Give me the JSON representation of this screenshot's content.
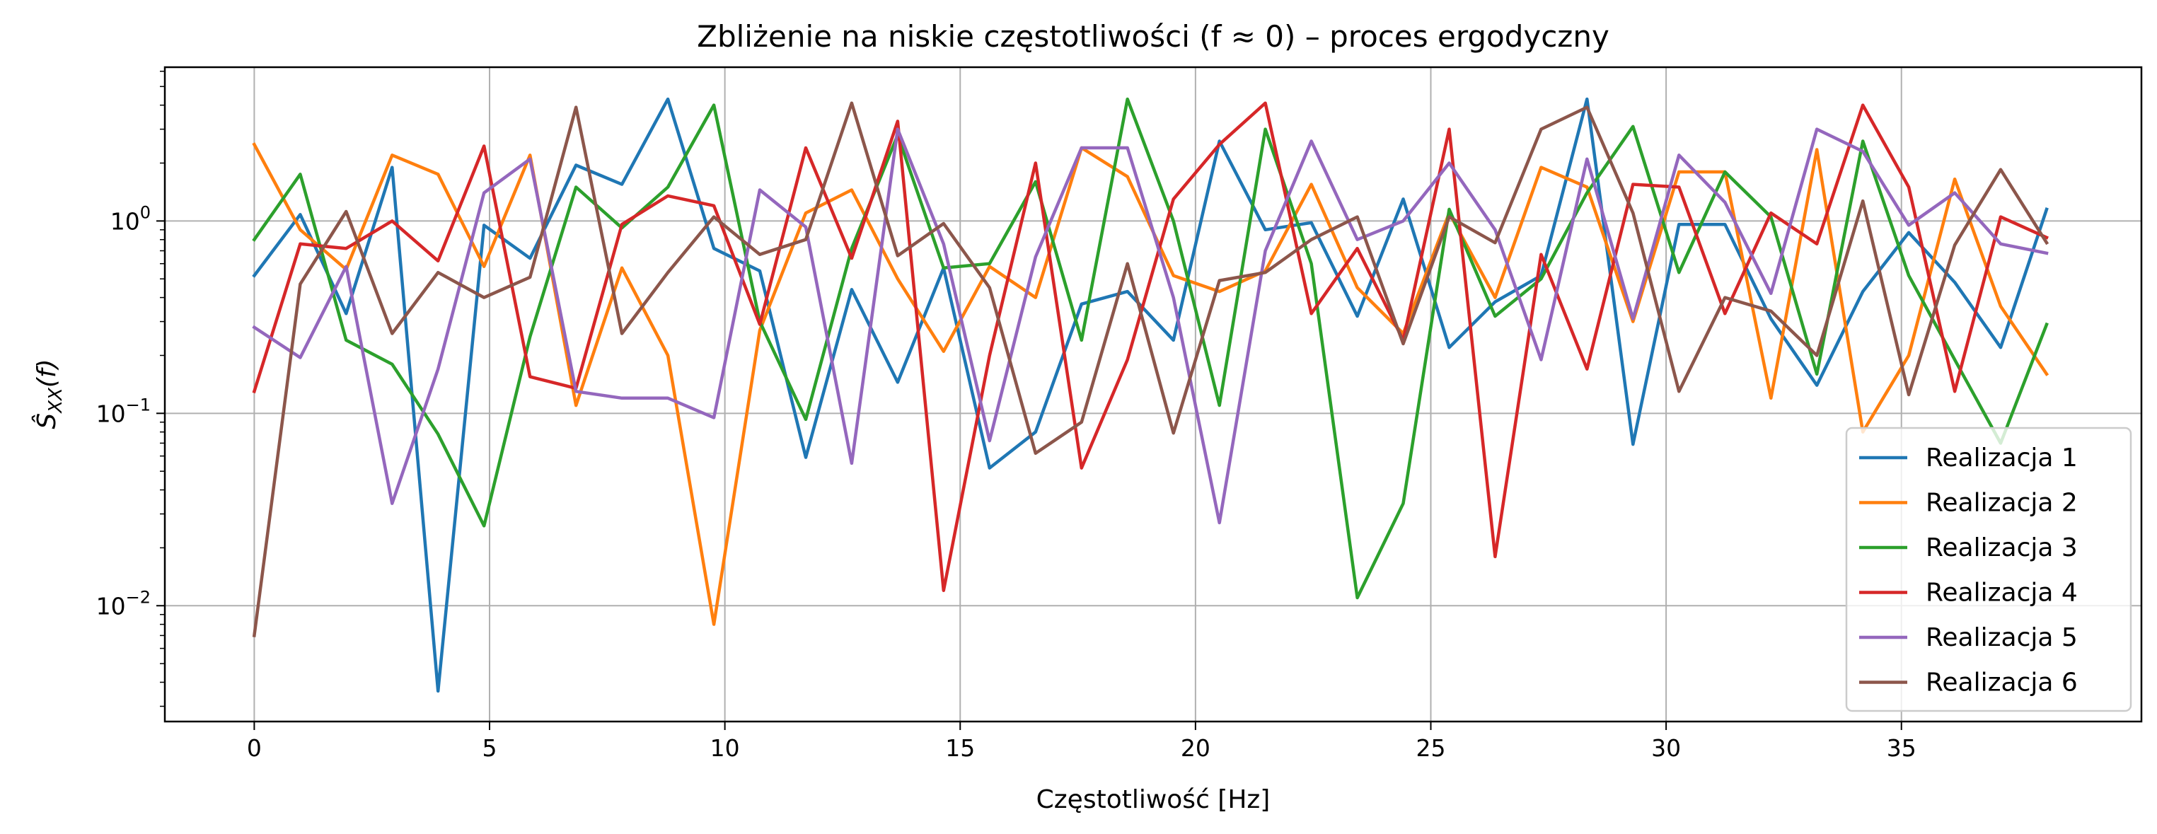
{
  "chart_data": {
    "type": "line",
    "title": "Zbliżenie na niskie częstotliwości (f ≈ 0) – proces ergodyczny",
    "xlabel": "Częstotliwość [Hz]",
    "ylabel": "Ŝ_XX(f)",
    "yscale": "log",
    "xlim": [
      -1.9,
      40.1
    ],
    "ylim": [
      0.0025,
      6.3
    ],
    "xticks": [
      0,
      5,
      10,
      15,
      20,
      25,
      30,
      35
    ],
    "xtick_labels": [
      "0",
      "5",
      "10",
      "15",
      "20",
      "25",
      "30",
      "35"
    ],
    "yticks": [
      0.01,
      0.1,
      1
    ],
    "ytick_labels": [
      {
        "base": "10",
        "exp": "−2"
      },
      {
        "base": "10",
        "exp": "−1"
      },
      {
        "base": "10",
        "exp": "0"
      }
    ],
    "grid": true,
    "legend_position": "lower right",
    "x": [
      0,
      0.977,
      1.953,
      2.93,
      3.906,
      4.883,
      5.859,
      6.836,
      7.813,
      8.789,
      9.766,
      10.742,
      11.719,
      12.695,
      13.672,
      14.648,
      15.625,
      16.602,
      17.578,
      18.555,
      19.531,
      20.508,
      21.484,
      22.461,
      23.438,
      24.414,
      25.391,
      26.367,
      27.344,
      28.32,
      29.297,
      30.273,
      31.25,
      32.227,
      33.203,
      34.18,
      35.156,
      36.133,
      37.109,
      38.086
    ],
    "series": [
      {
        "name": "Realizacja 1",
        "color": "#1f77b4",
        "values": [
          0.52,
          1.08,
          0.33,
          1.9,
          0.0036,
          0.95,
          0.64,
          1.95,
          1.55,
          4.3,
          0.72,
          0.55,
          0.059,
          0.44,
          0.145,
          0.57,
          0.052,
          0.08,
          0.37,
          0.43,
          0.24,
          2.6,
          0.9,
          0.98,
          0.32,
          1.3,
          0.22,
          0.38,
          0.52,
          4.3,
          0.069,
          0.96,
          0.96,
          0.31,
          0.14,
          0.43,
          0.87,
          0.48,
          0.22,
          1.15
        ]
      },
      {
        "name": "Realizacja 2",
        "color": "#ff7f0e",
        "values": [
          2.5,
          0.9,
          0.56,
          2.2,
          1.75,
          0.58,
          2.2,
          0.11,
          0.57,
          0.2,
          0.008,
          0.27,
          1.1,
          1.45,
          0.5,
          0.21,
          0.58,
          0.4,
          2.4,
          1.7,
          0.52,
          0.43,
          0.55,
          1.55,
          0.45,
          0.26,
          1.1,
          0.4,
          1.9,
          1.5,
          0.3,
          1.8,
          1.8,
          0.12,
          2.35,
          0.08,
          0.2,
          1.65,
          0.36,
          0.16
        ]
      },
      {
        "name": "Realizacja 3",
        "color": "#2ca02c",
        "values": [
          0.8,
          1.75,
          0.24,
          0.18,
          0.078,
          0.026,
          0.25,
          1.5,
          0.92,
          1.5,
          4.0,
          0.3,
          0.093,
          0.72,
          2.8,
          0.57,
          0.6,
          1.6,
          0.24,
          4.3,
          1.0,
          0.11,
          3.0,
          0.6,
          0.011,
          0.034,
          1.15,
          0.32,
          0.5,
          1.4,
          3.1,
          0.54,
          1.8,
          1.05,
          0.16,
          2.6,
          0.52,
          0.19,
          0.07,
          0.29
        ]
      },
      {
        "name": "Realizacja 4",
        "color": "#d62728",
        "values": [
          0.13,
          0.76,
          0.72,
          1.0,
          0.62,
          2.45,
          0.155,
          0.135,
          0.96,
          1.35,
          1.2,
          0.29,
          2.4,
          0.64,
          3.3,
          0.012,
          0.2,
          2.0,
          0.052,
          0.19,
          1.3,
          2.5,
          4.1,
          0.33,
          0.72,
          0.24,
          3.0,
          0.018,
          0.67,
          0.17,
          1.55,
          1.5,
          0.33,
          1.1,
          0.76,
          4.0,
          1.5,
          0.13,
          1.05,
          0.82
        ]
      },
      {
        "name": "Realizacja 5",
        "color": "#9467bd",
        "values": [
          0.28,
          0.195,
          0.58,
          0.034,
          0.17,
          1.4,
          2.1,
          0.13,
          0.12,
          0.12,
          0.095,
          1.45,
          0.93,
          0.055,
          3.0,
          0.76,
          0.072,
          0.65,
          2.4,
          2.4,
          0.4,
          0.027,
          0.7,
          2.6,
          0.8,
          1.0,
          2.0,
          0.9,
          0.19,
          2.1,
          0.31,
          2.2,
          1.25,
          0.42,
          3.0,
          2.3,
          0.95,
          1.4,
          0.76,
          0.68
        ]
      },
      {
        "name": "Realizacja 6",
        "color": "#8c564b",
        "values": [
          0.007,
          0.47,
          1.12,
          0.26,
          0.54,
          0.4,
          0.51,
          3.9,
          0.26,
          0.54,
          1.05,
          0.67,
          0.8,
          4.1,
          0.66,
          0.97,
          0.45,
          0.062,
          0.09,
          0.6,
          0.079,
          0.49,
          0.54,
          0.8,
          1.05,
          0.23,
          1.05,
          0.77,
          3.0,
          3.9,
          1.1,
          0.13,
          0.4,
          0.34,
          0.2,
          1.27,
          0.125,
          0.75,
          1.85,
          0.77
        ]
      }
    ]
  }
}
